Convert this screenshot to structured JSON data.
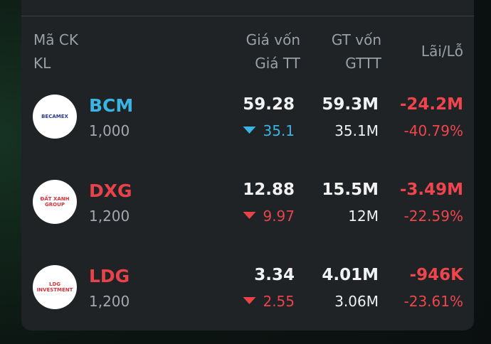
{
  "header": {
    "col1": [
      "Mã CK",
      "KL"
    ],
    "col2": [
      "Giá vốn",
      "Giá TT"
    ],
    "col3": [
      "GT vốn",
      "GTTT"
    ],
    "col4": "Lãi/Lỗ"
  },
  "rows": [
    {
      "logo": "BECAMEX",
      "ticker": "BCM",
      "quantity": "1,000",
      "cost_price": "59.28",
      "market_price": "35.1",
      "cost_value": "59.3M",
      "market_value": "35.1M",
      "pnl": "-24.2M",
      "pnl_percent": "-40.79%",
      "trend_color": "#3ab4e2"
    },
    {
      "logo": "ĐẤT XANH GROUP",
      "ticker": "DXG",
      "quantity": "1,200",
      "cost_price": "12.88",
      "market_price": "9.97",
      "cost_value": "15.5M",
      "market_value": "12M",
      "pnl": "-3.49M",
      "pnl_percent": "-22.59%",
      "trend_color": "#e8434b"
    },
    {
      "logo": "LDG INVESTMENT",
      "ticker": "LDG",
      "quantity": "1,200",
      "cost_price": "3.34",
      "market_price": "2.55",
      "cost_value": "4.01M",
      "market_value": "3.06M",
      "pnl": "-946K",
      "pnl_percent": "-23.61%",
      "trend_color": "#e8434b"
    }
  ]
}
